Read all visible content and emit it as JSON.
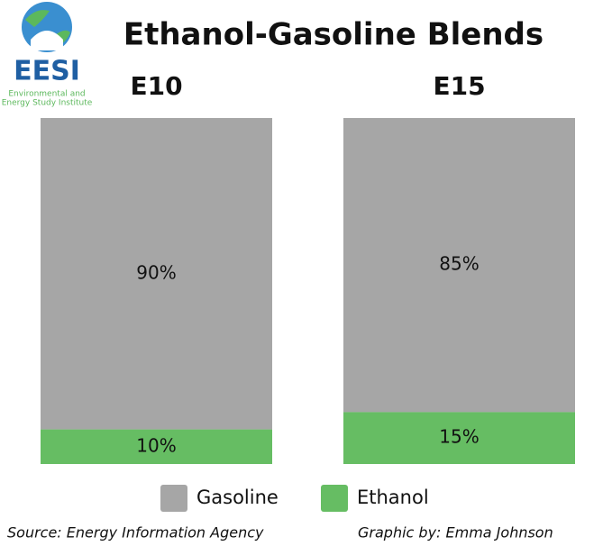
{
  "logo": {
    "name": "EESI",
    "line1": "Environmental and",
    "line2": "Energy Study Institute"
  },
  "chart_data": {
    "type": "bar",
    "stacked": true,
    "title": "Ethanol-Gasoline Blends",
    "categories": [
      "E10",
      "E15"
    ],
    "series": [
      {
        "name": "Gasoline",
        "color": "#a6a6a6",
        "values": [
          90,
          85
        ],
        "value_labels": [
          "90%",
          "85%"
        ]
      },
      {
        "name": "Ethanol",
        "color": "#66bd63",
        "values": [
          10,
          15
        ],
        "value_labels": [
          "10%",
          "15%"
        ]
      }
    ],
    "source": "Source: Energy Information Agency",
    "credit": "Graphic by: Emma Johnson"
  }
}
